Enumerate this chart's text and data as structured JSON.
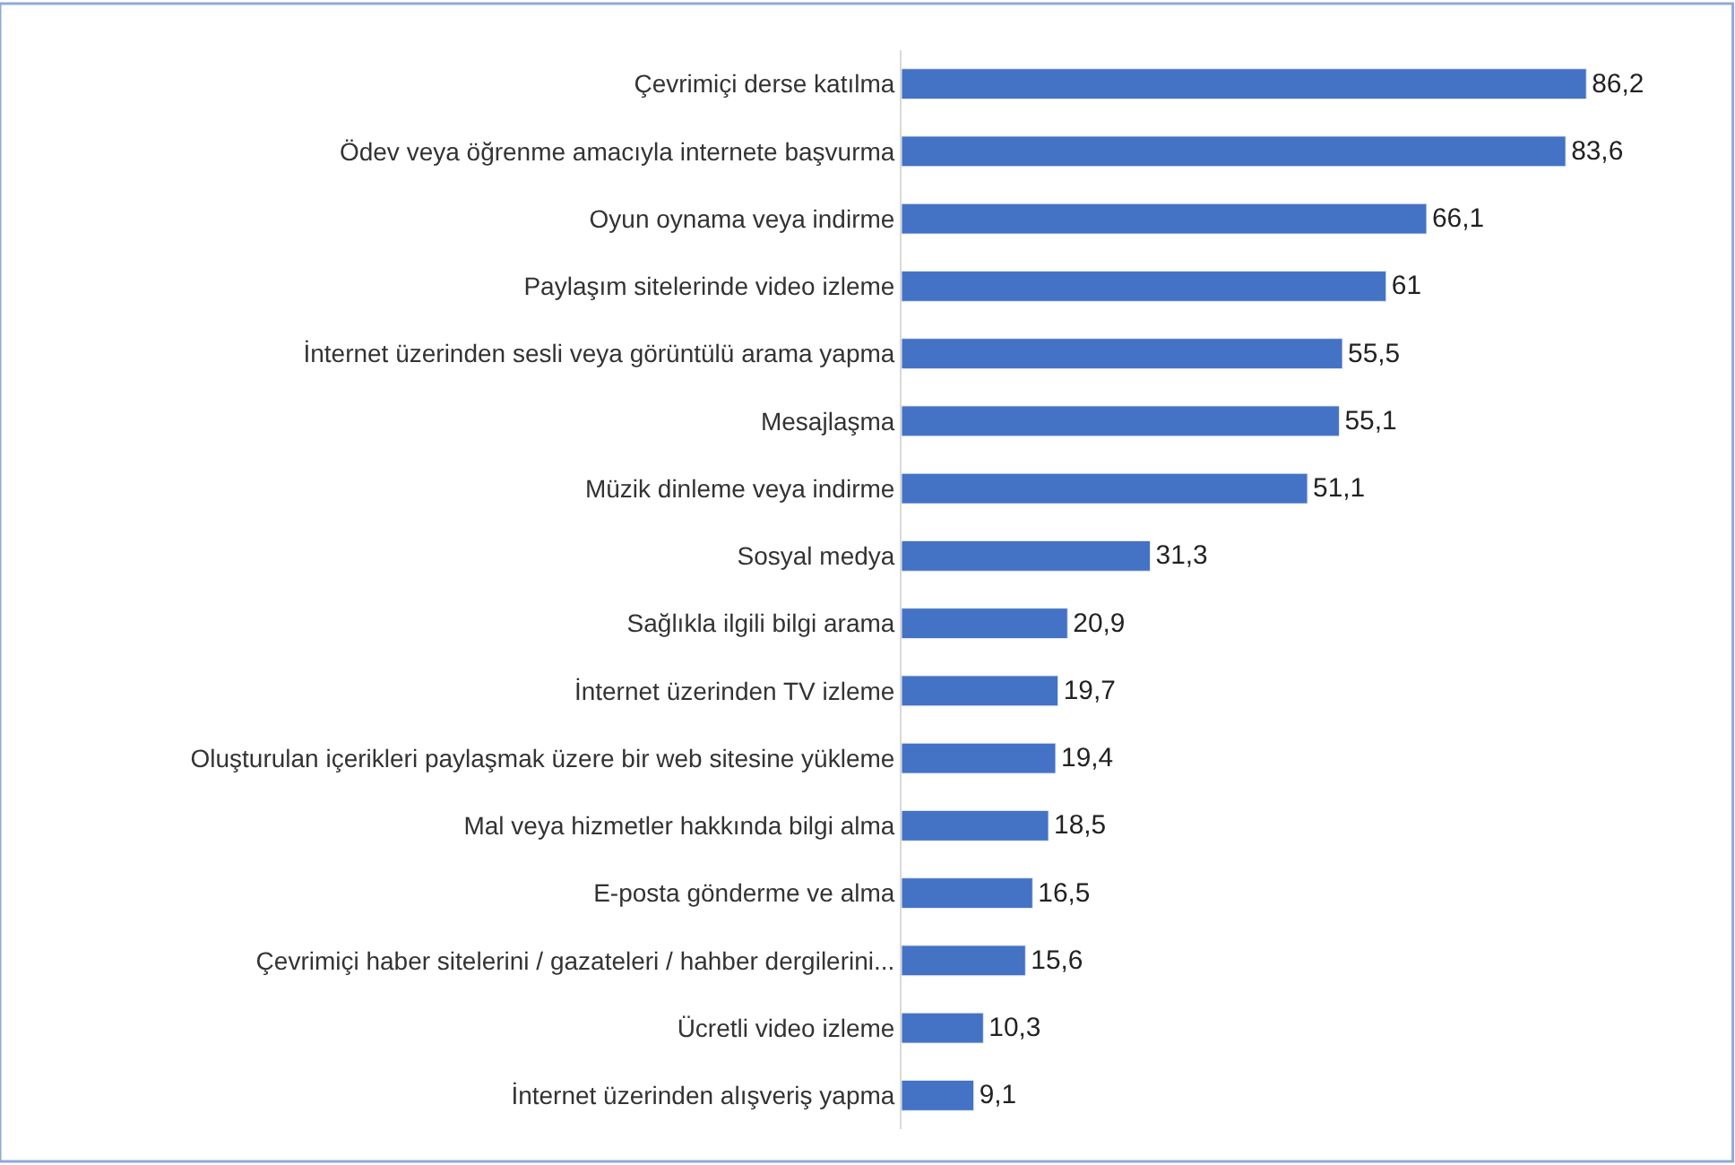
{
  "chart_data": {
    "type": "bar",
    "orientation": "horizontal",
    "categories": [
      "Çevrimiçi derse katılma",
      "Ödev veya öğrenme amacıyla internete başvurma",
      "Oyun oynama veya indirme",
      "Paylaşım sitelerinde video izleme",
      "İnternet üzerinden sesli veya görüntülü arama yapma",
      "Mesajlaşma",
      "Müzik dinleme veya indirme",
      "Sosyal medya",
      "Sağlıkla ilgili bilgi arama",
      "İnternet üzerinden TV izleme",
      "Oluşturulan içerikleri paylaşmak üzere bir web sitesine yükleme",
      "Mal veya hizmetler hakkında bilgi alma",
      "E-posta gönderme ve alma",
      "Çevrimiçi haber sitelerini / gazateleri / hahber dergilerini...",
      "Ücretli video izleme",
      "İnternet üzerinden alışveriş yapma"
    ],
    "values": [
      86.2,
      83.6,
      66.1,
      61,
      55.5,
      55.1,
      51.1,
      31.3,
      20.9,
      19.7,
      19.4,
      18.5,
      16.5,
      15.6,
      10.3,
      9.1
    ],
    "value_labels": [
      "86,2",
      "83,6",
      "66,1",
      "61",
      "55,5",
      "55,1",
      "51,1",
      "31,3",
      "20,9",
      "19,7",
      "19,4",
      "18,5",
      "16,5",
      "15,6",
      "10,3",
      "9,1"
    ],
    "color": "#4472c4"
  }
}
